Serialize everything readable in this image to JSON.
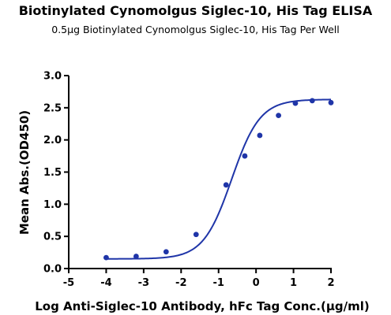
{
  "chart_data": {
    "type": "scatter",
    "title": "Biotinylated Cynomolgus Siglec-10, His Tag ELISA",
    "subtitle": "0.5μg Biotinylated Cynomolgus Siglec-10, His Tag Per Well",
    "xlabel": "Log Anti-Siglec-10 Antibody, hFc Tag Conc.(μg/ml)",
    "ylabel": "Mean Abs.(OD450)",
    "xlim": [
      -5,
      2
    ],
    "ylim": [
      0,
      3.0
    ],
    "xticks": [
      "-5",
      "-4",
      "-3",
      "-2",
      "-1",
      "0",
      "1",
      "2"
    ],
    "yticks": [
      "0.0",
      "0.5",
      "1.0",
      "1.5",
      "2.0",
      "2.5",
      "3.0"
    ],
    "grid": false,
    "colors": {
      "series": "#1f35a8",
      "axis": "#000000"
    },
    "series": [
      {
        "points": [
          {
            "x": -4.0,
            "y": 0.17
          },
          {
            "x": -3.2,
            "y": 0.19
          },
          {
            "x": -2.4,
            "y": 0.26
          },
          {
            "x": -1.6,
            "y": 0.53
          },
          {
            "x": -0.8,
            "y": 1.3
          },
          {
            "x": -0.3,
            "y": 1.75
          },
          {
            "x": 0.1,
            "y": 2.07
          },
          {
            "x": 0.6,
            "y": 2.38
          },
          {
            "x": 1.05,
            "y": 2.57
          },
          {
            "x": 1.5,
            "y": 2.61
          },
          {
            "x": 2.0,
            "y": 2.58
          }
        ],
        "fit": {
          "model": "4PL",
          "bottom": 0.15,
          "top": 2.63,
          "logEC50": -0.65,
          "hill": 1.15
        }
      }
    ]
  }
}
